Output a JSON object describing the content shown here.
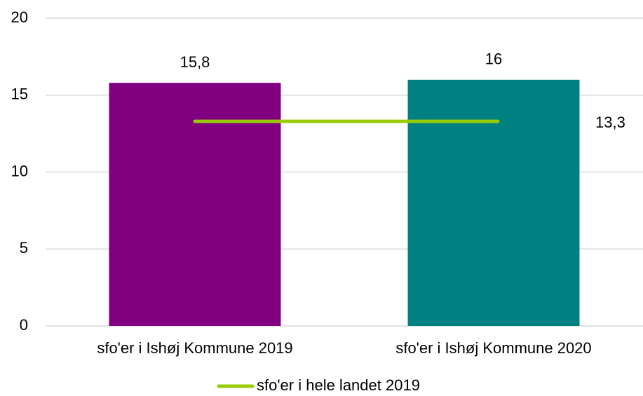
{
  "chart_data": {
    "type": "bar",
    "categories": [
      "sfo'er i Ishøj Kommune 2019",
      "sfo'er i Ishøj Kommune 2020"
    ],
    "values": [
      15.8,
      16
    ],
    "value_labels": [
      "15,8",
      "16"
    ],
    "colors": [
      "#800080",
      "#008080"
    ],
    "lines": [
      {
        "name": "sfo'er i hele landet 2019",
        "color": "#99cc00",
        "values": [
          13.3,
          13.3
        ],
        "value_labels": [
          null,
          "13,3"
        ]
      }
    ],
    "ylim": [
      0,
      20
    ],
    "yticks": [
      0,
      5,
      10,
      15,
      20
    ],
    "grid": true,
    "legend": "bottom"
  }
}
